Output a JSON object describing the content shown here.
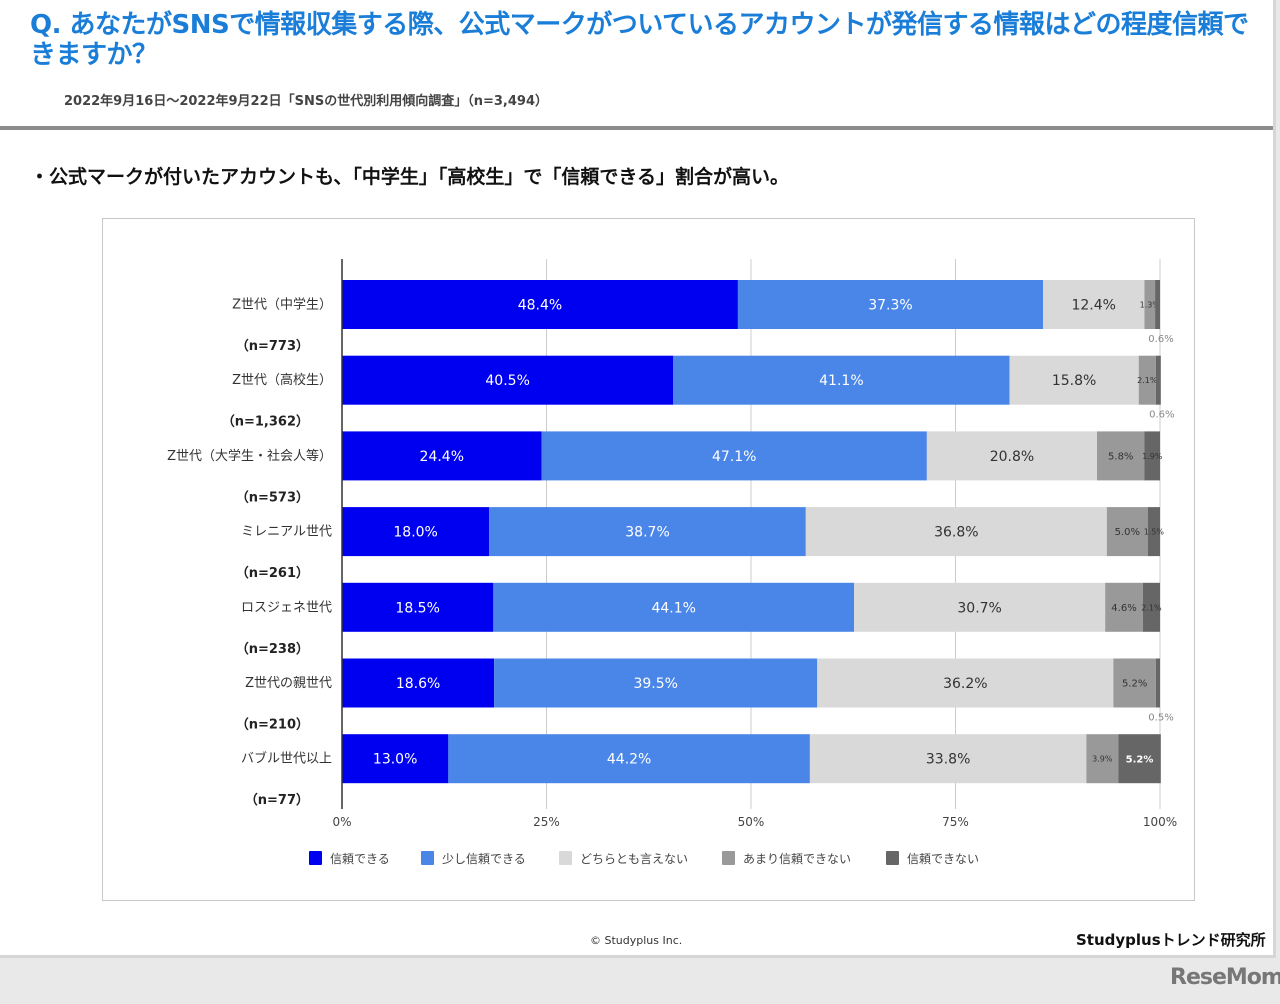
{
  "header": {
    "question": "Q. あなたがSNSで情報収集する際、公式マークがついているアカウントが発信する情報はどの程度信頼できますか？",
    "survey_info": "2022年9月16日〜2022年9月22日「SNSの世代別利用傾向調査」（n=3,494）"
  },
  "summary": "・公式マークが付いたアカウントも、「中学生」「高校生」で「信頼できる」割合が高い。",
  "footer": {
    "copyright": "© Studyplus Inc.",
    "brand": "Studyplusトレンド研究所",
    "watermark": "ReseMom"
  },
  "chart_data": {
    "type": "bar",
    "orientation": "horizontal",
    "stacked": true,
    "percent": true,
    "title": "",
    "xlabel": "",
    "ylabel": "",
    "xlim": [
      0,
      100
    ],
    "x_ticks": [
      "0%",
      "25%",
      "50%",
      "75%",
      "100%"
    ],
    "grid": true,
    "legend_position": "bottom",
    "categories": [
      {
        "label": "Z世代（中学生）",
        "n": "（n=773）"
      },
      {
        "label": "Z世代（高校生）",
        "n": "（n=1,362）"
      },
      {
        "label": "Z世代（大学生・社会人等）",
        "n": "（n=573）"
      },
      {
        "label": "ミレニアル世代",
        "n": "（n=261）"
      },
      {
        "label": "ロスジェネ世代",
        "n": "（n=238）"
      },
      {
        "label": "Z世代の親世代",
        "n": "（n=210）"
      },
      {
        "label": "バブル世代以上",
        "n": "（n=77）"
      }
    ],
    "series": [
      {
        "name": "信頼できる",
        "color": "#0000f0",
        "label_color": "#ffffff",
        "values": [
          48.4,
          40.5,
          24.4,
          18.0,
          18.5,
          18.6,
          13.0
        ]
      },
      {
        "name": "少し信頼できる",
        "color": "#4a86e8",
        "label_color": "#ffffff",
        "values": [
          37.3,
          41.1,
          47.1,
          38.7,
          44.1,
          39.5,
          44.2
        ]
      },
      {
        "name": "どちらとも言えない",
        "color": "#d9d9d9",
        "label_color": "#333333",
        "values": [
          12.4,
          15.8,
          20.8,
          36.8,
          30.7,
          36.2,
          33.8
        ]
      },
      {
        "name": "あまり信頼できない",
        "color": "#999999",
        "label_color": "#333333",
        "values": [
          1.3,
          2.1,
          5.8,
          5.0,
          4.6,
          5.2,
          3.9
        ]
      },
      {
        "name": "信頼できない",
        "color": "#666666",
        "label_color": "#ffffff",
        "values": [
          0.6,
          0.6,
          1.9,
          1.5,
          2.1,
          0.5,
          5.2
        ]
      }
    ]
  }
}
